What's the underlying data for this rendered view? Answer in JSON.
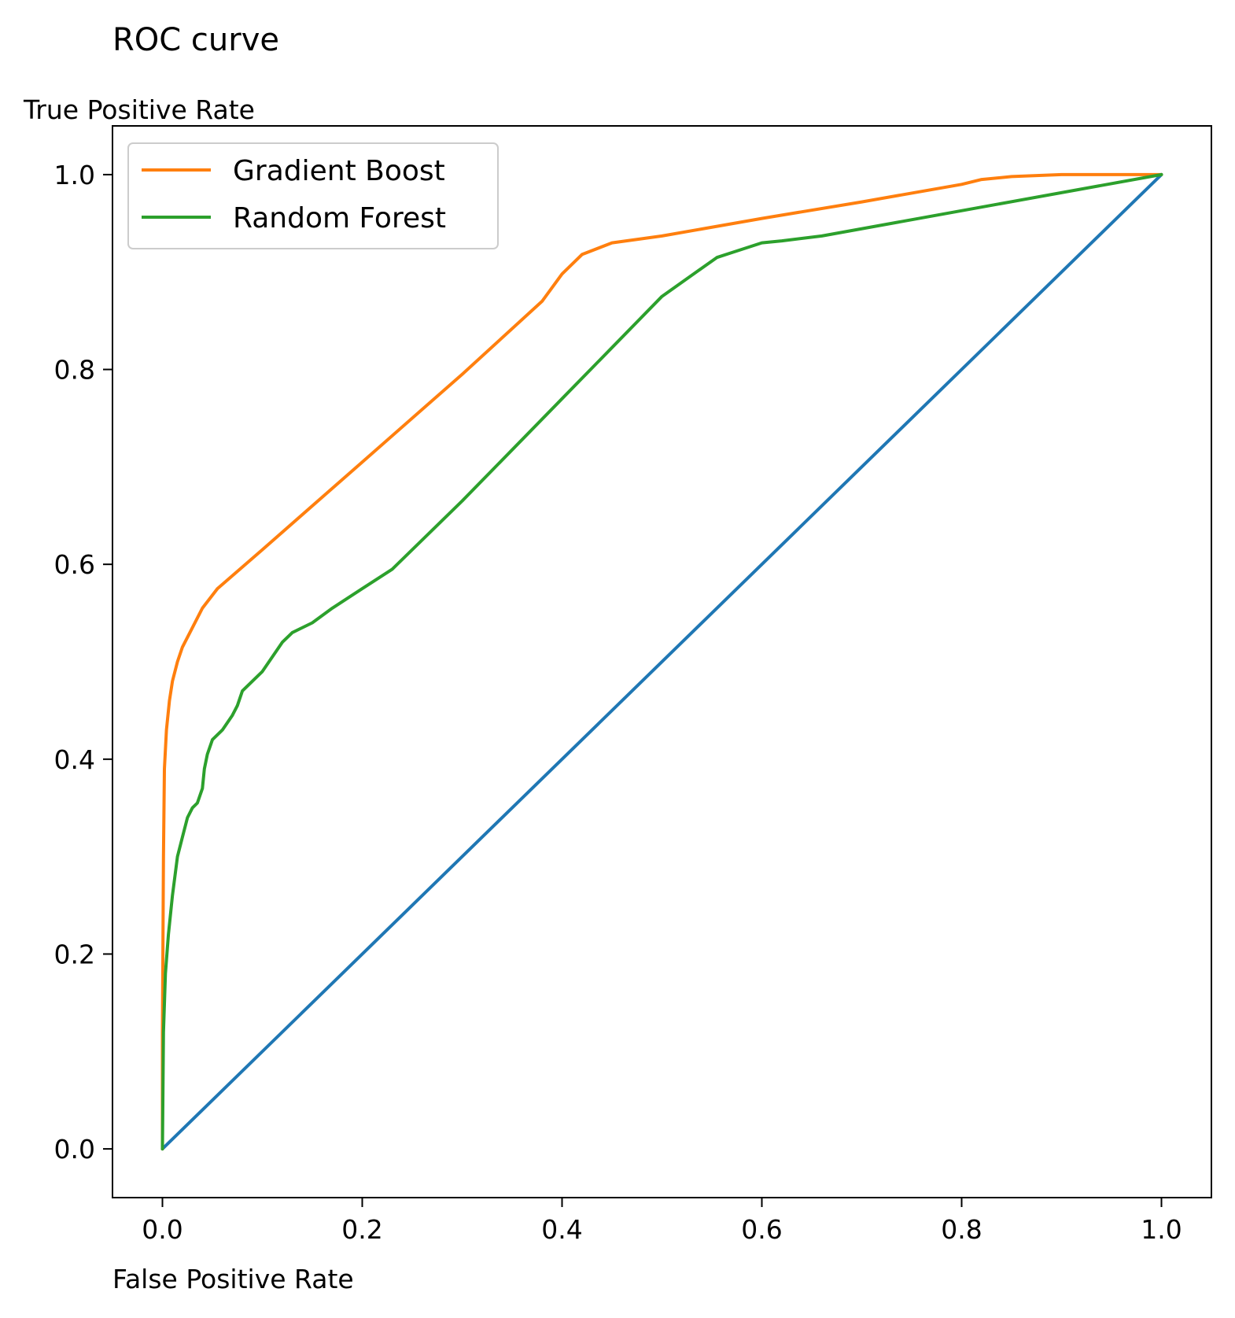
{
  "chart_data": {
    "type": "line",
    "title": "ROC curve",
    "xlabel": "False Positive Rate",
    "ylabel": "True Positive Rate",
    "xlim": [
      -0.05,
      1.05
    ],
    "ylim": [
      -0.05,
      1.05
    ],
    "xticks": [
      "0.0",
      "0.2",
      "0.4",
      "0.6",
      "0.8",
      "1.0"
    ],
    "yticks": [
      "0.0",
      "0.2",
      "0.4",
      "0.6",
      "0.8",
      "1.0"
    ],
    "grid": false,
    "legend_position": "top-left",
    "series": [
      {
        "name": "",
        "color": "#1f77b4",
        "in_legend": false,
        "x": [
          0,
          1
        ],
        "y": [
          0,
          1
        ]
      },
      {
        "name": "Gradient Boost",
        "color": "#ff7f0e",
        "in_legend": true,
        "x": [
          0,
          0.0,
          0.001,
          0.002,
          0.004,
          0.007,
          0.01,
          0.015,
          0.02,
          0.03,
          0.04,
          0.055,
          0.1,
          0.2,
          0.3,
          0.38,
          0.4,
          0.42,
          0.45,
          0.5,
          0.6,
          0.7,
          0.8,
          0.82,
          0.85,
          0.9,
          1.0
        ],
        "y": [
          0,
          0.12,
          0.3,
          0.39,
          0.43,
          0.46,
          0.48,
          0.5,
          0.515,
          0.535,
          0.555,
          0.575,
          0.615,
          0.705,
          0.795,
          0.87,
          0.898,
          0.918,
          0.93,
          0.937,
          0.955,
          0.972,
          0.99,
          0.995,
          0.998,
          1.0,
          1.0
        ]
      },
      {
        "name": "Random Forest",
        "color": "#2ca02c",
        "in_legend": true,
        "x": [
          0,
          0.001,
          0.003,
          0.006,
          0.01,
          0.015,
          0.02,
          0.025,
          0.03,
          0.035,
          0.04,
          0.042,
          0.045,
          0.05,
          0.06,
          0.07,
          0.075,
          0.08,
          0.1,
          0.12,
          0.13,
          0.15,
          0.17,
          0.2,
          0.23,
          0.3,
          0.4,
          0.5,
          0.555,
          0.57,
          0.6,
          0.62,
          0.66,
          1.0
        ],
        "y": [
          0,
          0.12,
          0.18,
          0.22,
          0.26,
          0.3,
          0.32,
          0.34,
          0.35,
          0.355,
          0.37,
          0.39,
          0.405,
          0.42,
          0.43,
          0.445,
          0.455,
          0.47,
          0.49,
          0.52,
          0.53,
          0.54,
          0.555,
          0.575,
          0.595,
          0.665,
          0.77,
          0.875,
          0.915,
          0.92,
          0.93,
          0.932,
          0.937,
          1.0
        ]
      }
    ]
  }
}
